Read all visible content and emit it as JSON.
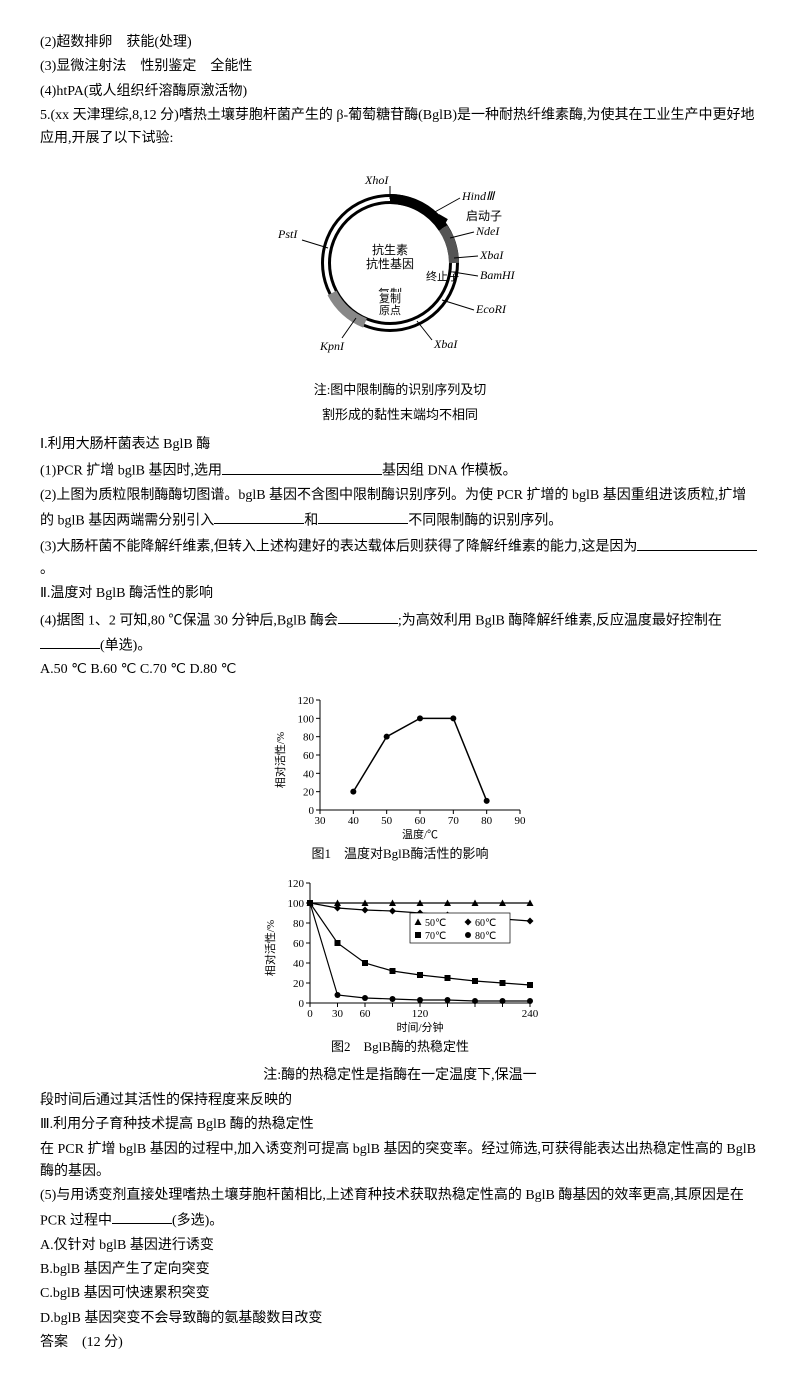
{
  "q2": "(2)超数排卵　获能(处理)",
  "q3": "(3)显微注射法　性别鉴定　全能性",
  "q4": "(4)htPA(或人组织纤溶酶原激活物)",
  "q5_stem": "5.(xx 天津理综,8,12 分)嗜热土壤芽胞杆菌产生的 β-葡萄糖苷酶(BglB)是一种耐热纤维素酶,为使其在工业生产中更好地应用,开展了以下试验:",
  "plasmid": {
    "center_top": "抗生素",
    "center_top2": "抗性基因",
    "center_bottom": "复制",
    "center_bottom2": "原点",
    "promoter": "启动子",
    "terminator": "终止子",
    "sites": {
      "XhoI": "XhoI",
      "HindIII": "HindⅢ",
      "NdeI": "NdeI",
      "XbaI_r": "XbaI",
      "BamHI": "BamHI",
      "EcoRI": "EcoRI",
      "XbaI_br": "XbaI",
      "KpnI": "KpnI",
      "PstI": "PstI"
    },
    "caption1": "注:图中限制酶的识别序列及切",
    "caption2": "割形成的黏性末端均不相同"
  },
  "sec1_title": "Ⅰ.利用大肠杆菌表达 BglB 酶",
  "sec1_q1_a": "(1)PCR 扩增 bglB 基因时,选用",
  "sec1_q1_b": "基因组 DNA 作模板。",
  "sec1_q2_a": "(2)上图为质粒限制酶酶切图谱。bglB 基因不含图中限制酶识别序列。为使 PCR 扩增的 bglB 基因重组进该质粒,扩增的 bglB 基因两端需分别引入",
  "sec1_q2_b": "和",
  "sec1_q2_c": "不同限制酶的识别序列。",
  "sec1_q3_a": "(3)大肠杆菌不能降解纤维素,但转入上述构建好的表达载体后则获得了降解纤维素的能力,这是因为",
  "sec1_q3_b": "。",
  "sec2_title": "Ⅱ.温度对 BglB 酶活性的影响",
  "sec2_q4_a": "(4)据图 1、2 可知,80 ℃保温 30 分钟后,BglB 酶会",
  "sec2_q4_b": ";为高效利用 BglB 酶降解纤维素,反应温度最好控制在",
  "sec2_q4_c": "(单选)。",
  "sec2_opts": "A.50 ℃  B.60 ℃  C.70 ℃  D.80 ℃",
  "chart1": {
    "title": "图1　温度对BglB酶活性的影响",
    "ylab": "相对活性/%",
    "xlab": "温度/℃",
    "xticks": [
      "30",
      "40",
      "50",
      "60",
      "70",
      "80",
      "90"
    ],
    "yticks": [
      "0",
      "20",
      "40",
      "60",
      "80",
      "100",
      "120"
    ],
    "xvals": [
      40,
      50,
      60,
      70,
      80
    ],
    "yvals": [
      20,
      80,
      100,
      100,
      10
    ],
    "line_color": "#000000",
    "marker": "circle"
  },
  "chart2": {
    "title": "图2　BglB酶的热稳定性",
    "ylab": "相对活性/%",
    "xlab": "时间/分钟",
    "xticks": [
      "0",
      "30",
      "60",
      "",
      "120",
      "",
      "",
      "",
      "240"
    ],
    "yticks": [
      "0",
      "20",
      "40",
      "60",
      "80",
      "100",
      "120"
    ],
    "legend": [
      "50℃",
      "60℃",
      "70℃",
      "80℃"
    ],
    "series": {
      "50": {
        "marker": "triangle",
        "y": [
          100,
          100,
          100,
          100,
          100,
          100,
          100,
          100,
          100
        ]
      },
      "60": {
        "marker": "diamond",
        "y": [
          100,
          95,
          93,
          92,
          90,
          88,
          86,
          84,
          82
        ]
      },
      "70": {
        "marker": "square",
        "y": [
          100,
          60,
          40,
          32,
          28,
          25,
          22,
          20,
          18
        ]
      },
      "80": {
        "marker": "circle",
        "y": [
          100,
          8,
          5,
          4,
          3,
          3,
          2,
          2,
          2
        ]
      }
    },
    "xvals": [
      0,
      30,
      60,
      90,
      120,
      150,
      180,
      210,
      240
    ],
    "line_color": "#000000"
  },
  "note": "注:酶的热稳定性是指酶在一定温度下,保温一",
  "note2": "段时间后通过其活性的保持程度来反映的",
  "sec3_title": "Ⅲ.利用分子育种技术提高 BglB 酶的热稳定性",
  "sec3_p": "在 PCR 扩增 bglB 基因的过程中,加入诱变剂可提高 bglB 基因的突变率。经过筛选,可获得能表达出热稳定性高的 BglB 酶的基因。",
  "sec3_q5_a": "(5)与用诱变剂直接处理嗜热土壤芽胞杆菌相比,上述育种技术获取热稳定性高的 BglB 酶基因的效率更高,其原因是在 PCR 过程中",
  "sec3_q5_b": "(多选)。",
  "optA": "A.仅针对 bglB 基因进行诱变",
  "optB": "B.bglB 基因产生了定向突变",
  "optC": "C.bglB 基因可快速累积突变",
  "optD": "D.bglB 基因突变不会导致酶的氨基酸数目改变",
  "ans": "答案　(12 分)"
}
